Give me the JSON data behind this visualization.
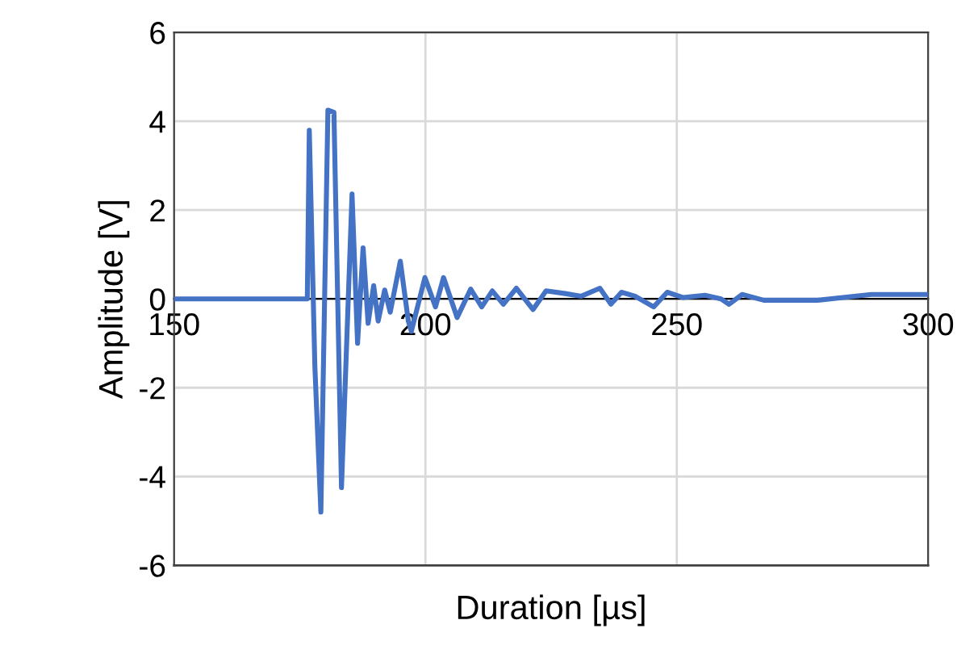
{
  "chart_data": {
    "type": "line",
    "xlabel": "Duration [µs]",
    "ylabel": "Amplitude [V]",
    "xlim": [
      150,
      300
    ],
    "xticks": [
      150,
      200,
      250,
      300
    ],
    "ylim": [
      -6,
      6
    ],
    "yticks": [
      -6,
      -4,
      -2,
      0,
      2,
      4,
      6
    ],
    "grid": true,
    "legend": false,
    "marker": "none",
    "line_style": "solid",
    "series": [
      {
        "color": "#4472c4",
        "x": [
          150,
          160,
          170,
          176.5,
          176.9,
          178,
          179.2,
          180.6,
          181.8,
          183.3,
          185.4,
          186.5,
          187.6,
          188.6,
          189.7,
          190.6,
          191.9,
          193,
          195,
          196.6,
          197.2,
          199.9,
          202,
          203.6,
          206.3,
          209,
          211.2,
          213.3,
          215.5,
          218.1,
          221.4,
          224,
          227.8,
          231,
          234.7,
          236.9,
          239,
          241.7,
          245.4,
          248.1,
          251.3,
          255.6,
          258.8,
          260.4,
          263,
          267.3,
          278,
          288.7,
          300
        ],
        "values": [
          0,
          0,
          0,
          0,
          3.8,
          -1.5,
          -4.8,
          4.25,
          4.2,
          -4.25,
          2.36,
          -1.0,
          1.15,
          -0.55,
          0.3,
          -0.5,
          0.2,
          -0.3,
          0.85,
          -0.5,
          -0.73,
          0.48,
          -0.18,
          0.48,
          -0.42,
          0.22,
          -0.18,
          0.18,
          -0.12,
          0.24,
          -0.24,
          0.18,
          0.12,
          0.06,
          0.24,
          -0.12,
          0.15,
          0.06,
          -0.18,
          0.15,
          0.03,
          0.08,
          0,
          -0.12,
          0.1,
          -0.03,
          -0.03,
          0.1,
          0.1
        ]
      }
    ]
  }
}
